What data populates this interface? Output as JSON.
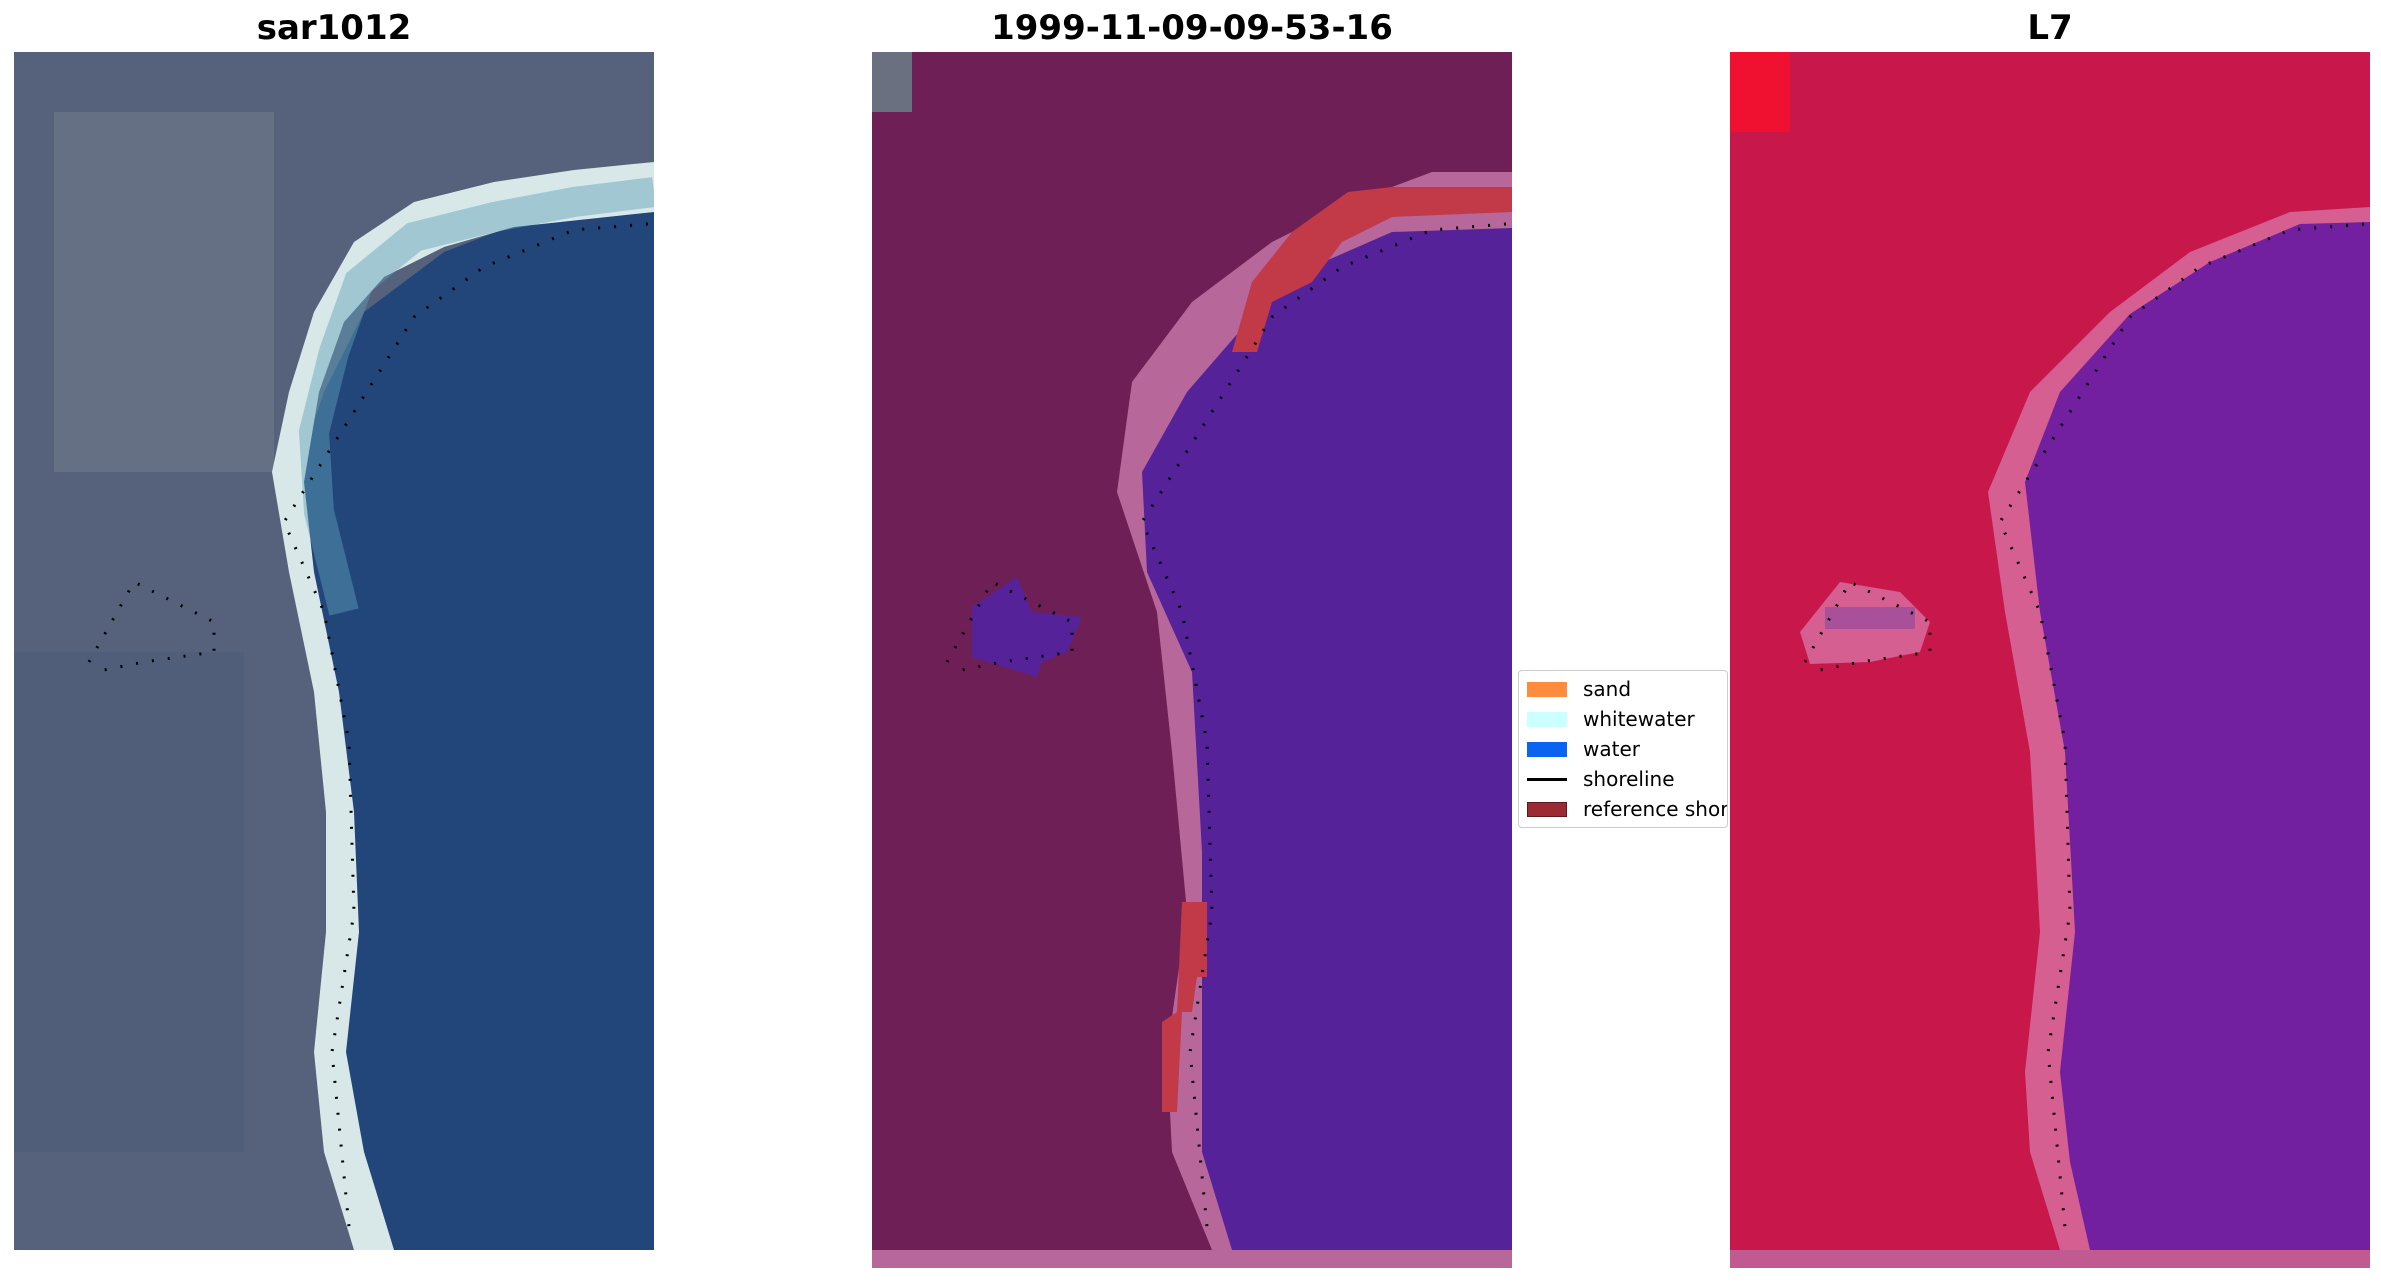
{
  "panels": [
    {
      "title": "sar1012"
    },
    {
      "title": "1999-11-09-09-53-16"
    },
    {
      "title": "L7"
    }
  ],
  "legend": {
    "items": [
      {
        "label": "sand",
        "color": "#fd8d3c",
        "kind": "patch"
      },
      {
        "label": "whitewater",
        "color": "#ccffff",
        "kind": "patch"
      },
      {
        "label": "water",
        "color": "#0a64f0",
        "kind": "patch"
      },
      {
        "label": "shoreline",
        "color": "#000000",
        "kind": "line"
      },
      {
        "label": "reference shoreline",
        "color": "#9b2a34",
        "kind": "patch"
      }
    ]
  },
  "colors": {
    "rgb_land": "#56627c",
    "rgb_water": "#23467a",
    "rgb_beach": "#d8e8e8",
    "class_land": "#6e2056",
    "class_water": "#55229a",
    "class_band": "#b8679a",
    "class_reference": "#c23a48",
    "ndwi_land": "#c8174a",
    "ndwi_water": "#7220a0",
    "ndwi_band": "#d45f90"
  }
}
